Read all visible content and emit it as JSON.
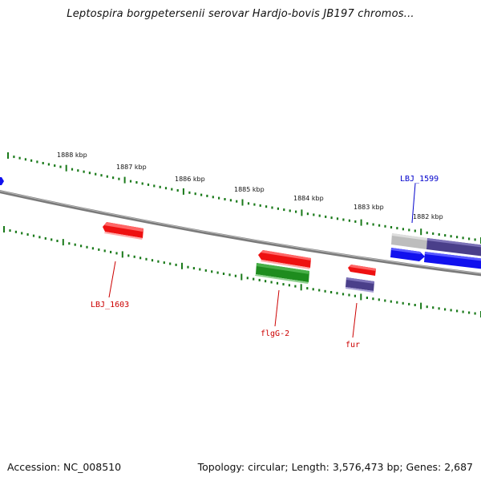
{
  "title": "Leptospira borgpetersenii serovar Hardjo-bovis JB197 chromos...",
  "footer": {
    "accession": "Accession: NC_008510",
    "summary": "Topology: circular; Length: 3,576,473 bp; Genes: 2,687"
  },
  "ruler_labels": [
    "1888 kbp",
    "1887 kbp",
    "1886 kbp",
    "1885 kbp",
    "1884 kbp",
    "1883 kbp",
    "1882 kbp"
  ],
  "gene_labels": [
    {
      "text": "LBJ_1599",
      "color": "#0000cc"
    },
    {
      "text": "LBJ_1603",
      "color": "#cc0000"
    },
    {
      "text": "flgG-2",
      "color": "#cc0000"
    },
    {
      "text": "fur",
      "color": "#cc0000"
    }
  ],
  "colors": {
    "backbone": "#808080",
    "ticks": "#1a7a1a",
    "red_gene": "#ee1111",
    "green_gene": "#1e8c1e",
    "blue_gene": "#1111ee",
    "purple_gene": "#4a3f8a",
    "gray_gene": "#bdbdbd"
  }
}
